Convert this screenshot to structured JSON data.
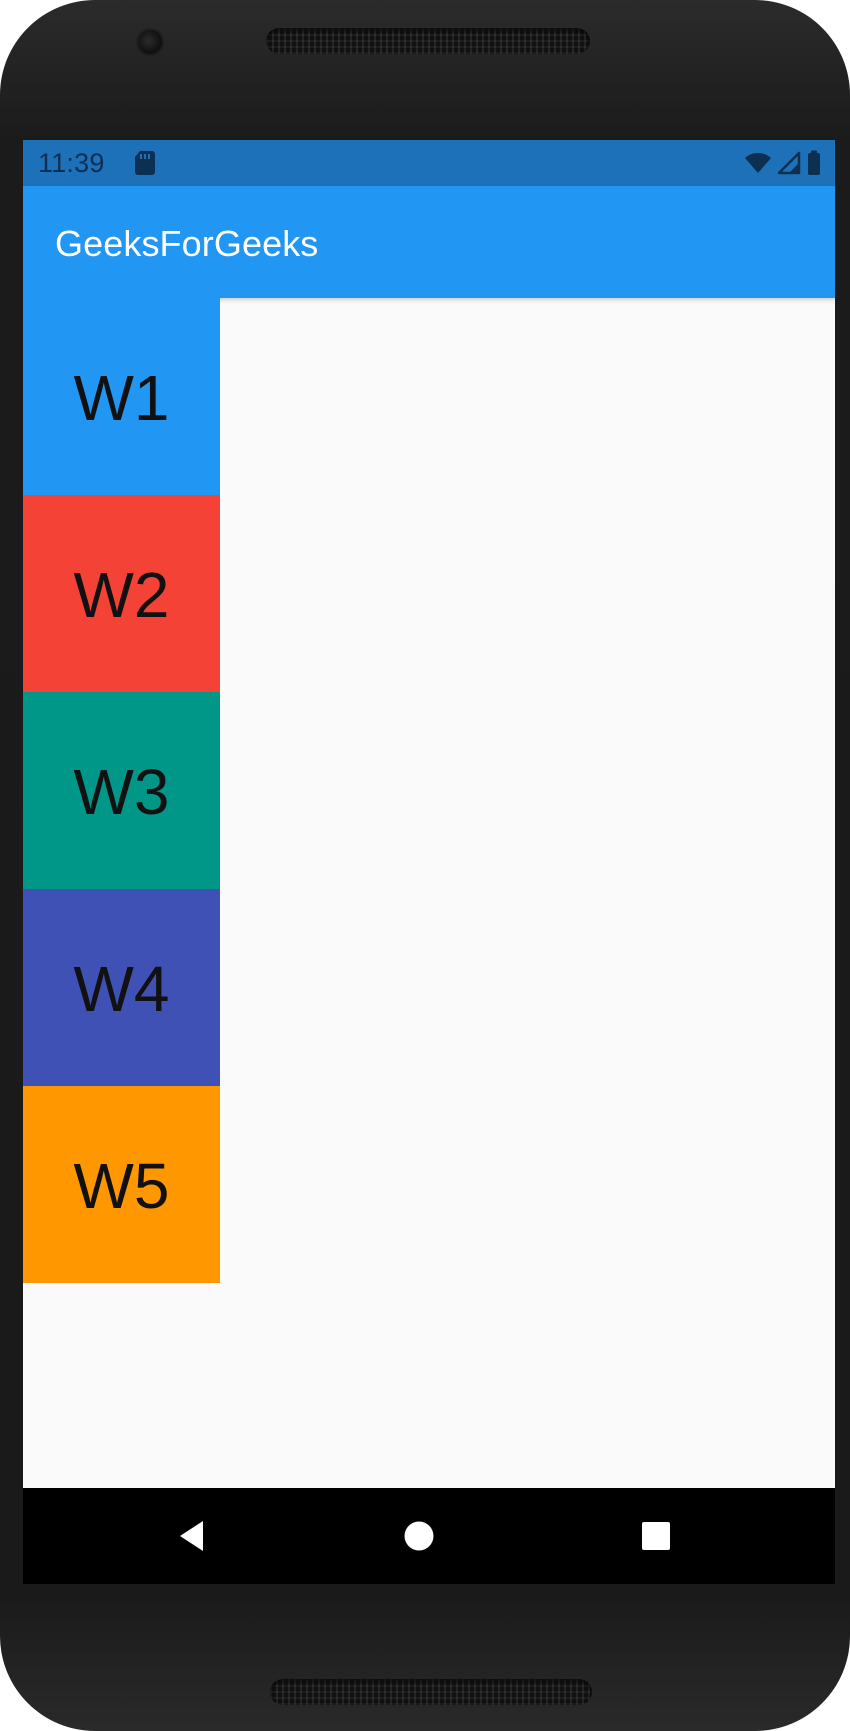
{
  "status_bar": {
    "time": "11:39",
    "icons": [
      "sd-card-icon",
      "wifi-icon",
      "signal-icon",
      "battery-icon"
    ]
  },
  "app_bar": {
    "title": "GeeksForGeeks"
  },
  "tiles": [
    {
      "label": "W1",
      "color": "#2196f3"
    },
    {
      "label": "W2",
      "color": "#f44336"
    },
    {
      "label": "W3",
      "color": "#009688"
    },
    {
      "label": "W4",
      "color": "#3f51b5"
    },
    {
      "label": "W5",
      "color": "#ff9800"
    }
  ],
  "navigation_bar": {
    "icons": [
      "back-icon",
      "home-icon",
      "recents-icon"
    ]
  },
  "theme": {
    "status_bar_color": "#1d71b8",
    "app_bar_color": "#2196f3",
    "screen_background": "#fafafa",
    "navigation_bar_color": "#000000"
  }
}
